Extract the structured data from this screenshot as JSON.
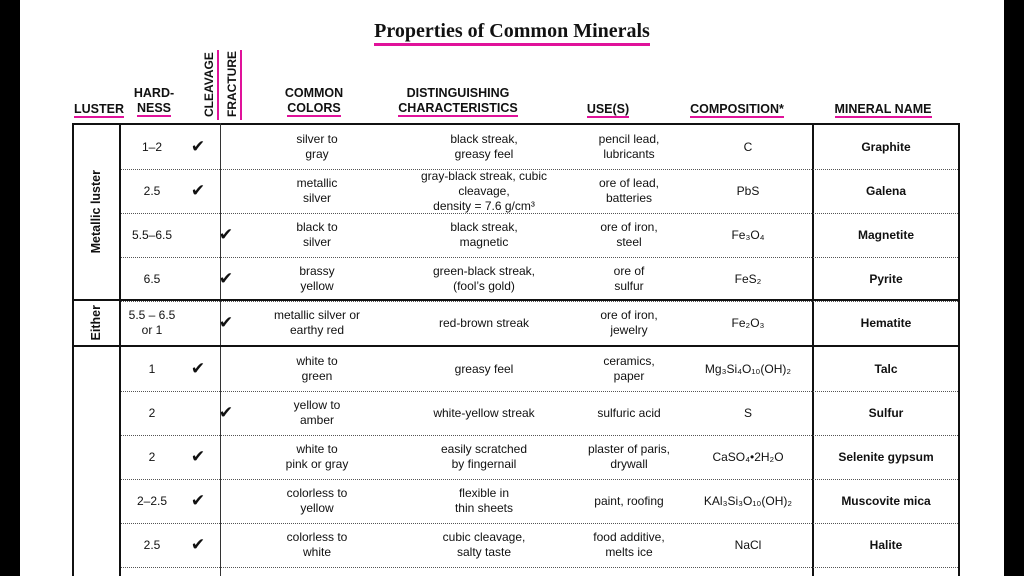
{
  "title": "Properties of Common Minerals",
  "headers": {
    "luster": "LUSTER",
    "hardness_1": "HARD-",
    "hardness_2": "NESS",
    "cleavage": "CLEAVAGE",
    "fracture": "FRACTURE",
    "colors_1": "COMMON",
    "colors_2": "COLORS",
    "distinguishing_1": "DISTINGUISHING",
    "distinguishing_2": "CHARACTERISTICS",
    "uses": "USE(S)",
    "composition": "COMPOSITION*",
    "mineral_name": "MINERAL NAME"
  },
  "luster_groups": [
    {
      "label": "Metallic luster"
    },
    {
      "label": "Either"
    },
    {
      "label": ""
    }
  ],
  "check_glyph": "✔",
  "accent_color": "#e0129a",
  "rows": [
    {
      "hardness": "1–2",
      "cleavage": true,
      "fracture": false,
      "colors_1": "silver to",
      "colors_2": "gray",
      "dist_1": "black streak,",
      "dist_2": "greasy feel",
      "uses_1": "pencil lead,",
      "uses_2": "lubricants",
      "composition": "C",
      "name": "Graphite"
    },
    {
      "hardness": "2.5",
      "cleavage": true,
      "fracture": false,
      "colors_1": "metallic",
      "colors_2": "silver",
      "dist_1": "gray-black streak, cubic cleavage,",
      "dist_2": "density = 7.6 g/cm³",
      "uses_1": "ore of lead,",
      "uses_2": "batteries",
      "composition": "PbS",
      "name": "Galena"
    },
    {
      "hardness": "5.5–6.5",
      "cleavage": false,
      "fracture": true,
      "colors_1": "black to",
      "colors_2": "silver",
      "dist_1": "black streak,",
      "dist_2": "magnetic",
      "uses_1": "ore of iron,",
      "uses_2": "steel",
      "composition": "Fe₃O₄",
      "name": "Magnetite"
    },
    {
      "hardness": "6.5",
      "cleavage": false,
      "fracture": true,
      "colors_1": "brassy",
      "colors_2": "yellow",
      "dist_1": "green-black streak,",
      "dist_2": "(fool’s gold)",
      "uses_1": "ore of",
      "uses_2": "sulfur",
      "composition": "FeS₂",
      "name": "Pyrite"
    },
    {
      "hardness": "5.5 – 6.5",
      "hardness_2": "or 1",
      "cleavage": false,
      "fracture": true,
      "colors_1": "metallic silver or",
      "colors_2": "earthy red",
      "dist_1": "red-brown streak",
      "dist_2": "",
      "uses_1": "ore of iron,",
      "uses_2": "jewelry",
      "composition": "Fe₂O₃",
      "name": "Hematite"
    },
    {
      "hardness": "1",
      "cleavage": true,
      "fracture": false,
      "colors_1": "white to",
      "colors_2": "green",
      "dist_1": "greasy feel",
      "dist_2": "",
      "uses_1": "ceramics,",
      "uses_2": "paper",
      "composition": "Mg₃Si₄O₁₀(OH)₂",
      "name": "Talc"
    },
    {
      "hardness": "2",
      "cleavage": false,
      "fracture": true,
      "colors_1": "yellow to",
      "colors_2": "amber",
      "dist_1": "white-yellow streak",
      "dist_2": "",
      "uses_1": "sulfuric acid",
      "uses_2": "",
      "composition": "S",
      "name": "Sulfur"
    },
    {
      "hardness": "2",
      "cleavage": true,
      "fracture": false,
      "colors_1": "white to",
      "colors_2": "pink or gray",
      "dist_1": "easily scratched",
      "dist_2": "by fingernail",
      "uses_1": "plaster of paris,",
      "uses_2": "drywall",
      "composition": "CaSO₄•2H₂O",
      "name": "Selenite gypsum"
    },
    {
      "hardness": "2–2.5",
      "cleavage": true,
      "fracture": false,
      "colors_1": "colorless to",
      "colors_2": "yellow",
      "dist_1": "flexible in",
      "dist_2": "thin sheets",
      "uses_1": "paint, roofing",
      "uses_2": "",
      "composition": "KAl₃Si₃O₁₀(OH)₂",
      "name": "Muscovite mica"
    },
    {
      "hardness": "2.5",
      "cleavage": true,
      "fracture": false,
      "colors_1": "colorless to",
      "colors_2": "white",
      "dist_1": "cubic cleavage,",
      "dist_2": "salty taste",
      "uses_1": "food additive,",
      "uses_2": "melts ice",
      "composition": "NaCl",
      "name": "Halite"
    }
  ]
}
